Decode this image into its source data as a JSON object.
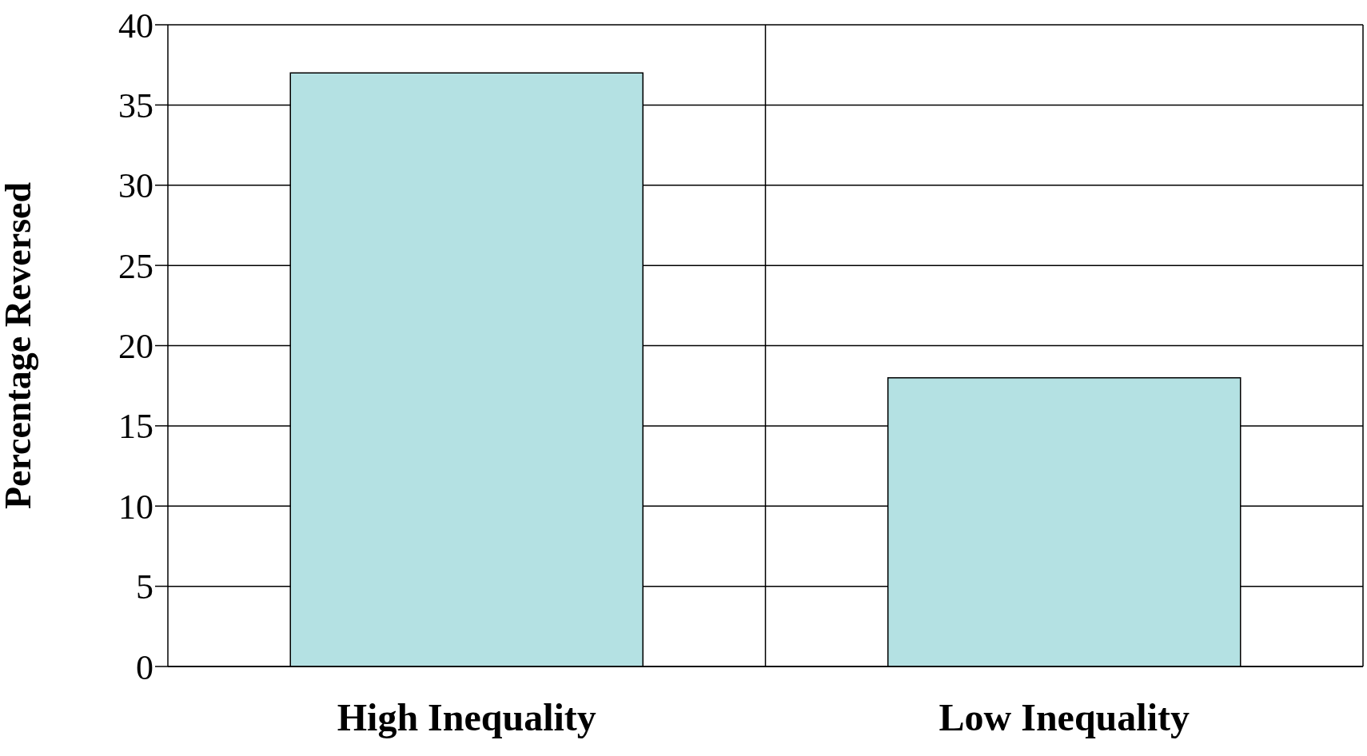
{
  "chart_data": {
    "type": "bar",
    "ylabel": "Percentage Reversed",
    "categories": [
      "High Inequality",
      "Low Inequality"
    ],
    "values": [
      37,
      18
    ],
    "color": "#b4e1e3",
    "ylim": [
      0,
      40
    ],
    "yticks": [
      0,
      5,
      10,
      15,
      20,
      25,
      30,
      35,
      40
    ],
    "grid": true
  }
}
